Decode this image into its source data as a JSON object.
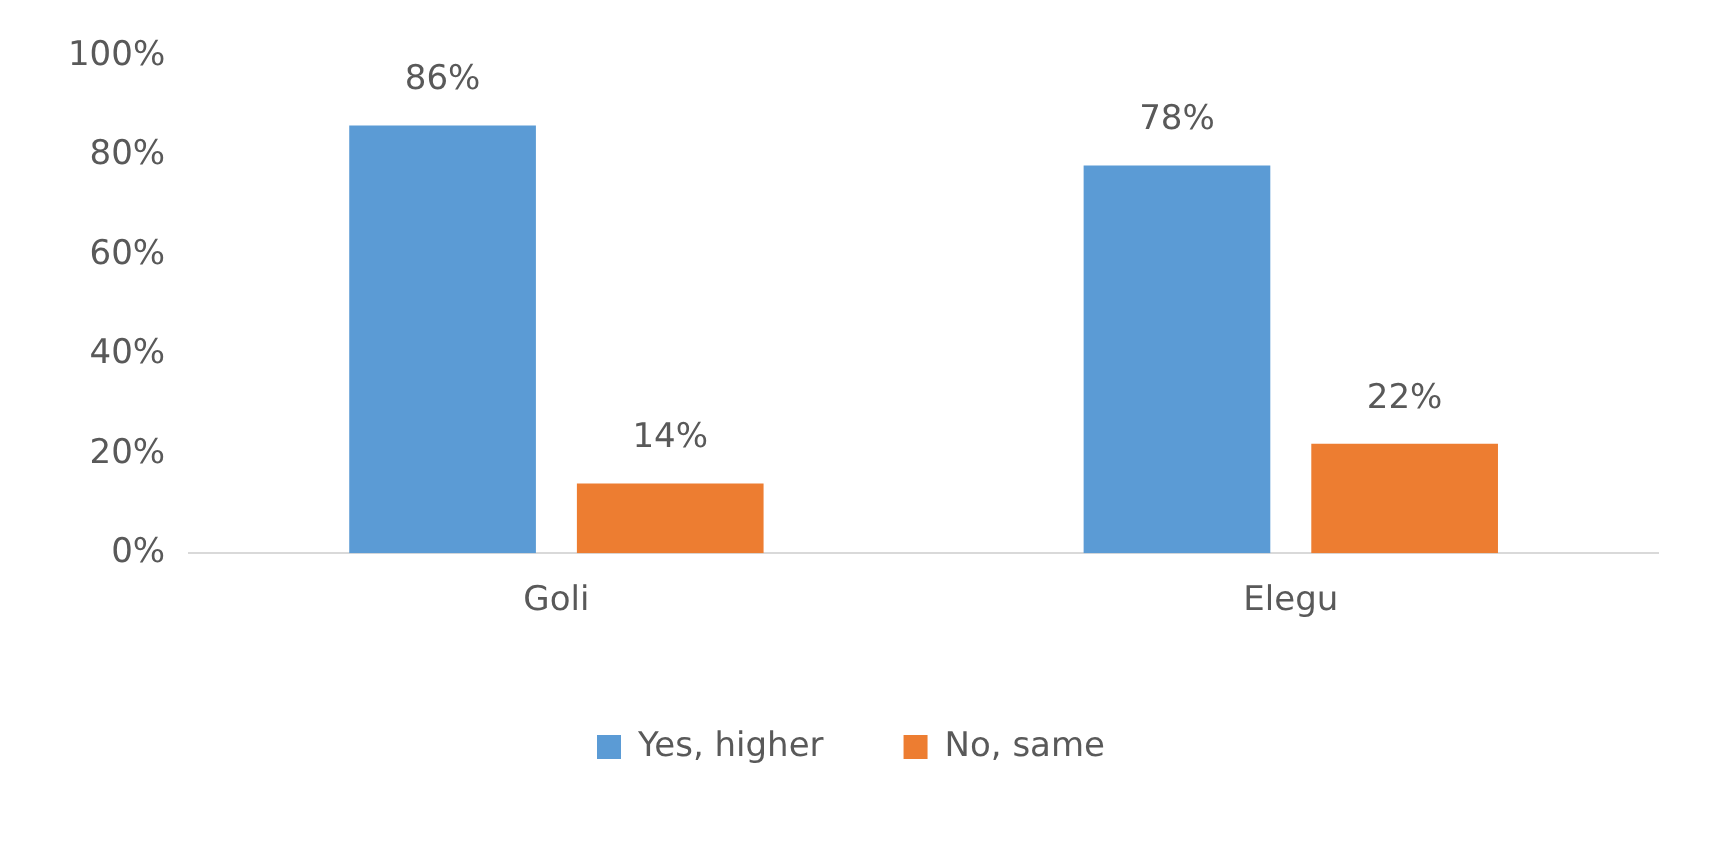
{
  "chart_data": {
    "type": "bar",
    "categories": [
      "Goli",
      "Elegu"
    ],
    "series": [
      {
        "name": "Yes, higher",
        "color": "#5b9bd5",
        "values": [
          86,
          78
        ],
        "value_labels": [
          "86%",
          "78%"
        ]
      },
      {
        "name": "No, same",
        "color": "#ed7d31",
        "values": [
          14,
          22
        ],
        "value_labels": [
          "14%",
          "22%"
        ]
      }
    ],
    "ylim": [
      0,
      100
    ],
    "yticks": [
      {
        "value": 0,
        "label": "0%"
      },
      {
        "value": 20,
        "label": "20%"
      },
      {
        "value": 40,
        "label": "40%"
      },
      {
        "value": 60,
        "label": "60%"
      },
      {
        "value": 80,
        "label": "80%"
      },
      {
        "value": 100,
        "label": "100%"
      }
    ],
    "grid": false,
    "legend": "bottom"
  }
}
